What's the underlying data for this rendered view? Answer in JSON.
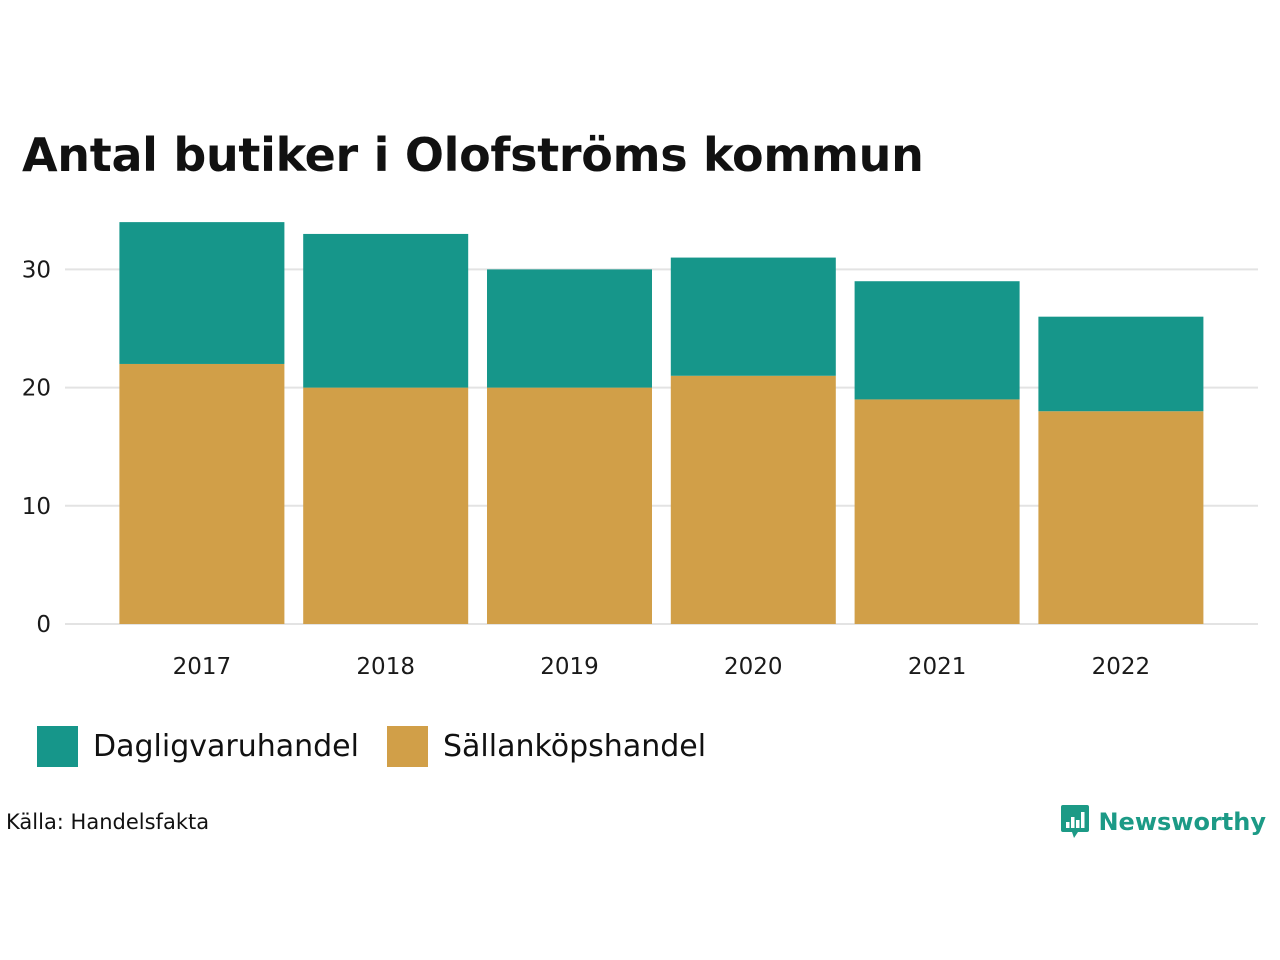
{
  "colors": {
    "dagligvaruhandel": "#16968a",
    "sallankopshandel": "#d19f48",
    "gridline": "#e3e3e3",
    "brand": "#1c9a86"
  },
  "brand": {
    "name": "Newsworthy",
    "icon": "newsworthy-logo-icon"
  },
  "source": "Källa: Handelsfakta",
  "chart_data": {
    "type": "bar",
    "stacked": true,
    "title": "Antal butiker i Olofströms kommun",
    "xlabel": "",
    "ylabel": "",
    "categories": [
      "2017",
      "2018",
      "2019",
      "2020",
      "2021",
      "2022"
    ],
    "series": [
      {
        "name": "Sällanköpshandel",
        "values": [
          22,
          20,
          20,
          21,
          19,
          18
        ]
      },
      {
        "name": "Dagligvaruhandel",
        "values": [
          12,
          13,
          10,
          10,
          10,
          8
        ]
      }
    ],
    "yticks": [
      "0",
      "10",
      "20",
      "30"
    ],
    "ylim": [
      0,
      34
    ],
    "grid": true,
    "legend": [
      {
        "label": "Dagligvaruhandel"
      },
      {
        "label": "Sällanköpshandel"
      }
    ],
    "legend_position": "bottom-left"
  }
}
